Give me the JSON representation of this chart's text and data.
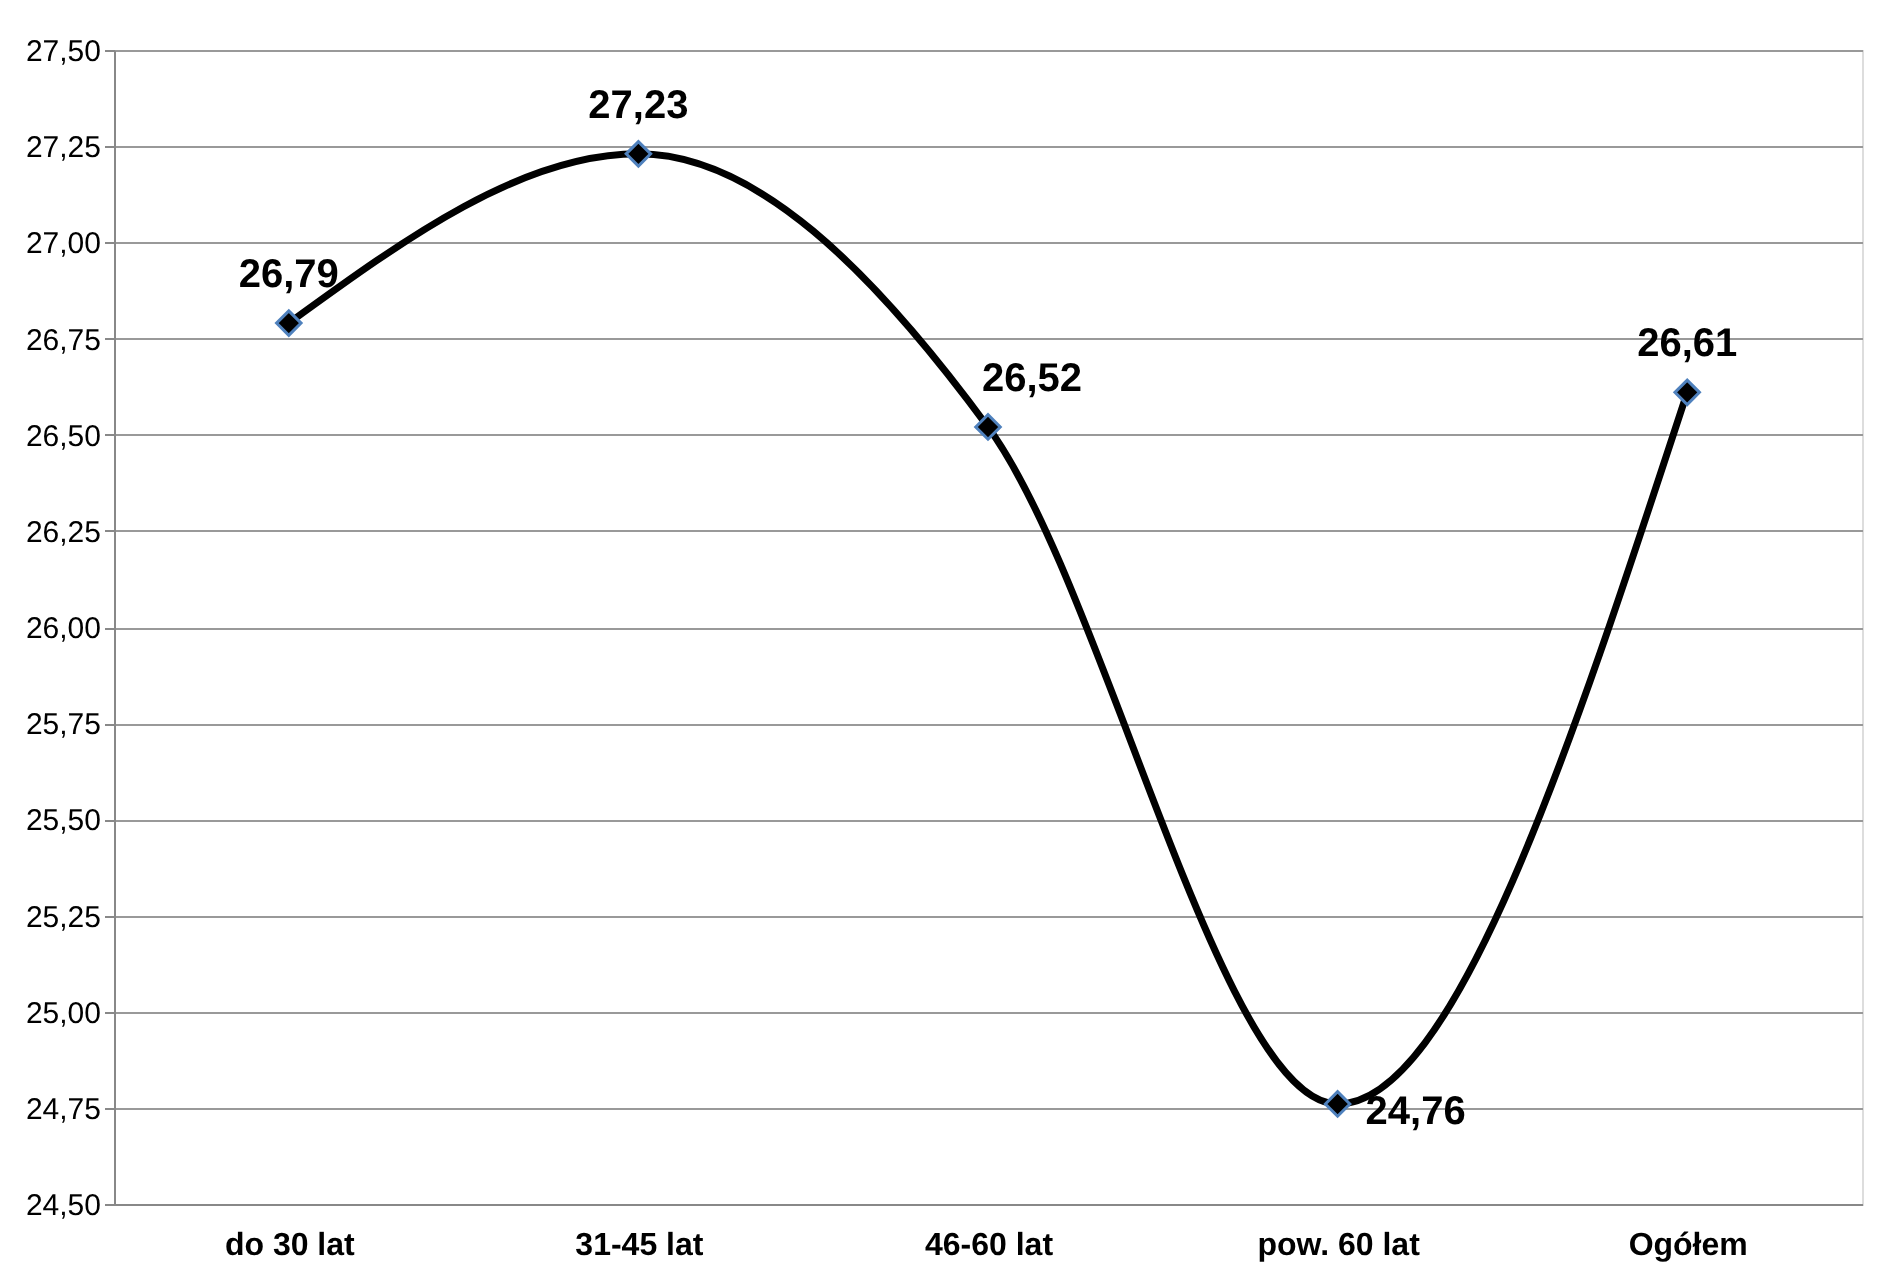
{
  "chart_data": {
    "type": "line",
    "categories": [
      "do 30 lat",
      "31-45 lat",
      "46-60 lat",
      "pow. 60 lat",
      "Ogółem"
    ],
    "series": [
      {
        "color": "#000000",
        "values": [
          26.79,
          27.23,
          26.52,
          24.76,
          26.61
        ],
        "value_labels": [
          "26,79",
          "27,23",
          "26,52",
          "24,76",
          "26,61"
        ]
      }
    ],
    "ylim": [
      24.5,
      27.5
    ],
    "yticks": [
      {
        "value": 24.5,
        "label": "24,50"
      },
      {
        "value": 24.75,
        "label": "24,75"
      },
      {
        "value": 25.0,
        "label": "25,00"
      },
      {
        "value": 25.25,
        "label": "25,25"
      },
      {
        "value": 25.5,
        "label": "25,50"
      },
      {
        "value": 25.75,
        "label": "25,75"
      },
      {
        "value": 26.0,
        "label": "26,00"
      },
      {
        "value": 26.25,
        "label": "26,25"
      },
      {
        "value": 26.5,
        "label": "26,50"
      },
      {
        "value": 26.75,
        "label": "26,75"
      },
      {
        "value": 27.0,
        "label": "27,00"
      },
      {
        "value": 27.25,
        "label": "27,25"
      },
      {
        "value": 27.5,
        "label": "27,50"
      }
    ],
    "grid": "y",
    "marker": "diamond",
    "line_style": "solid"
  }
}
